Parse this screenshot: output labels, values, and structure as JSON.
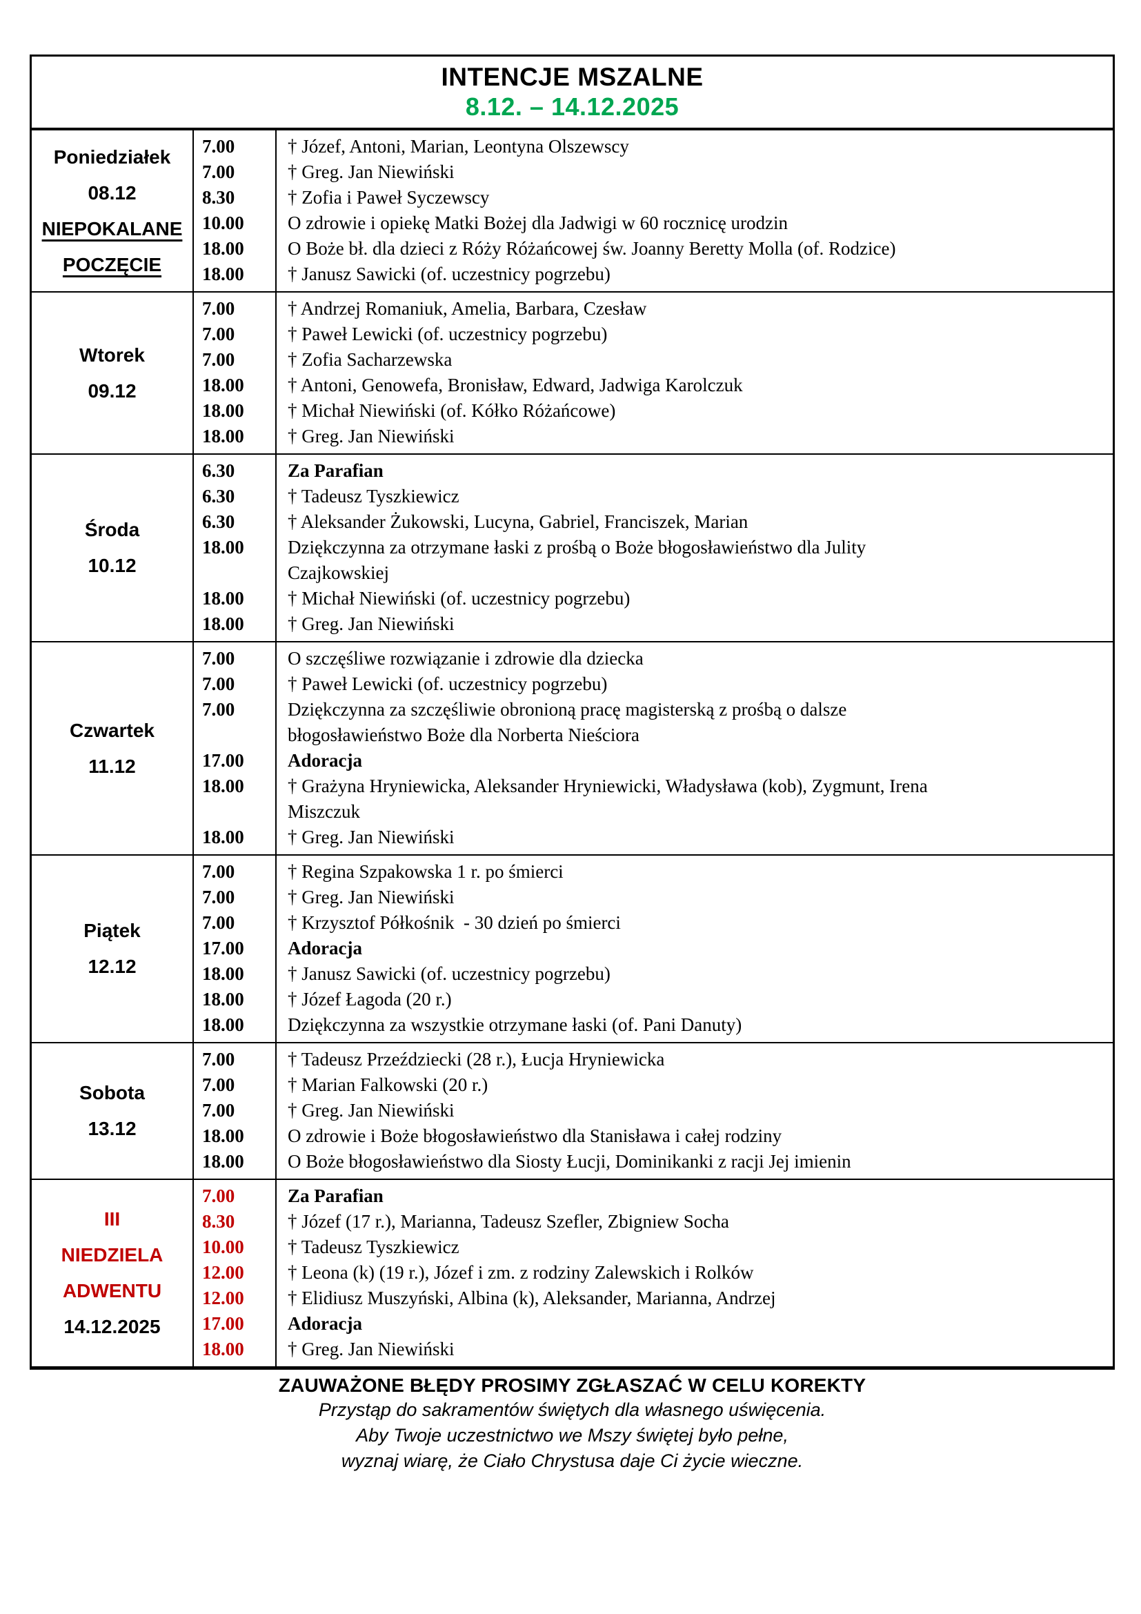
{
  "colors": {
    "green": "#00A651",
    "red": "#C00000"
  },
  "header": {
    "title": "INTENCJE MSZALNE",
    "date_range": "8.12. – 14.12.2025"
  },
  "days": [
    {
      "label_lines": [
        {
          "text": "Poniedziałek"
        },
        {
          "text": "08.12"
        },
        {
          "text": "NIEPOKALANE",
          "underline": true
        },
        {
          "text": "POCZĘCIE",
          "underline": true
        }
      ],
      "red_times": false,
      "entries": [
        {
          "time": "7.00",
          "text": "† Józef, Antoni, Marian, Leontyna Olszewscy"
        },
        {
          "time": "7.00",
          "text": "† Greg. Jan Niewiński"
        },
        {
          "time": "8.30",
          "text": "† Zofia i Paweł Syczewscy"
        },
        {
          "time": "10.00",
          "text": "O zdrowie i opiekę Matki Bożej dla Jadwigi w 60 rocznicę urodzin"
        },
        {
          "time": "18.00",
          "text": "O Boże bł. dla dzieci z Róży Różańcowej św. Joanny Beretty Molla (of. Rodzice)"
        },
        {
          "time": "18.00",
          "text": "† Janusz Sawicki (of. uczestnicy pogrzebu)"
        }
      ]
    },
    {
      "label_lines": [
        {
          "text": "Wtorek"
        },
        {
          "text": "09.12"
        }
      ],
      "red_times": false,
      "entries": [
        {
          "time": "7.00",
          "text": "† Andrzej Romaniuk, Amelia, Barbara, Czesław"
        },
        {
          "time": "7.00",
          "text": "† Paweł Lewicki (of. uczestnicy pogrzebu)"
        },
        {
          "time": "7.00",
          "text": "† Zofia Sacharzewska"
        },
        {
          "time": "18.00",
          "text": "† Antoni, Genowefa, Bronisław, Edward, Jadwiga Karolczuk"
        },
        {
          "time": "18.00",
          "text": "† Michał Niewiński (of. Kółko Różańcowe)"
        },
        {
          "time": "18.00",
          "text": "† Greg. Jan Niewiński"
        }
      ]
    },
    {
      "label_lines": [
        {
          "text": "Środa"
        },
        {
          "text": "10.12"
        }
      ],
      "red_times": false,
      "entries": [
        {
          "time": "6.30",
          "text": "Za Parafian",
          "bold": true
        },
        {
          "time": "6.30",
          "text": "† Tadeusz Tyszkiewicz"
        },
        {
          "time": "6.30",
          "text": "† Aleksander Żukowski, Lucyna, Gabriel, Franciszek, Marian"
        },
        {
          "time": "18.00",
          "text": "Dziękczynna za otrzymane łaski z prośbą o Boże błogosławieństwo dla Julity\nCzajkowskiej"
        },
        {
          "time": "18.00",
          "text": "† Michał Niewiński (of. uczestnicy pogrzebu)"
        },
        {
          "time": "18.00",
          "text": "† Greg. Jan Niewiński"
        }
      ]
    },
    {
      "label_lines": [
        {
          "text": "Czwartek"
        },
        {
          "text": "11.12"
        }
      ],
      "red_times": false,
      "entries": [
        {
          "time": "7.00",
          "text": "O szczęśliwe rozwiązanie i zdrowie dla dziecka"
        },
        {
          "time": "7.00",
          "text": "† Paweł Lewicki (of. uczestnicy pogrzebu)"
        },
        {
          "time": "7.00",
          "text": "Dziękczynna za szczęśliwie obronioną pracę magisterską z prośbą o dalsze\nbłogosławieństwo Boże dla Norberta Nieściora"
        },
        {
          "time": "17.00",
          "text": "Adoracja",
          "bold": true
        },
        {
          "time": "18.00",
          "text": "† Grażyna Hryniewicka, Aleksander Hryniewicki, Władysława (kob), Zygmunt, Irena\nMiszczuk"
        },
        {
          "time": "18.00",
          "text": "† Greg. Jan Niewiński"
        }
      ]
    },
    {
      "label_lines": [
        {
          "text": "Piątek"
        },
        {
          "text": "12.12"
        }
      ],
      "red_times": false,
      "entries": [
        {
          "time": "7.00",
          "text": "† Regina Szpakowska 1 r. po śmierci"
        },
        {
          "time": "7.00",
          "text": "† Greg. Jan Niewiński"
        },
        {
          "time": "7.00",
          "text": "† Krzysztof Półkośnik  - 30 dzień po śmierci"
        },
        {
          "time": "17.00",
          "text": "Adoracja",
          "bold": true
        },
        {
          "time": "18.00",
          "text": "† Janusz Sawicki (of. uczestnicy pogrzebu)"
        },
        {
          "time": "18.00",
          "text": "† Józef Łagoda (20 r.)"
        },
        {
          "time": "18.00",
          "text": "Dziękczynna za wszystkie otrzymane łaski (of. Pani Danuty)"
        }
      ]
    },
    {
      "label_lines": [
        {
          "text": "Sobota"
        },
        {
          "text": "13.12"
        }
      ],
      "red_times": false,
      "entries": [
        {
          "time": "7.00",
          "text": "† Tadeusz Przeździecki (28 r.), Łucja Hryniewicka"
        },
        {
          "time": "7.00",
          "text": "† Marian Falkowski (20 r.)"
        },
        {
          "time": "7.00",
          "text": "† Greg. Jan Niewiński"
        },
        {
          "time": "18.00",
          "text": "O zdrowie i Boże błogosławieństwo dla Stanisława i całej rodziny"
        },
        {
          "time": "18.00",
          "text": "O Boże błogosławieństwo dla Siosty Łucji, Dominikanki z racji Jej imienin"
        }
      ]
    },
    {
      "label_lines": [
        {
          "text": "III",
          "red": true
        },
        {
          "text": "NIEDZIELA",
          "red": true
        },
        {
          "text": "ADWENTU",
          "red": true
        },
        {
          "text": "14.12.2025"
        }
      ],
      "red_times": true,
      "entries": [
        {
          "time": "7.00",
          "text": "Za Parafian",
          "bold": true
        },
        {
          "time": "8.30",
          "text": "† Józef (17 r.), Marianna, Tadeusz Szefler, Zbigniew Socha"
        },
        {
          "time": "10.00",
          "text": "† Tadeusz Tyszkiewicz"
        },
        {
          "time": "12.00",
          "text": "† Leona (k) (19 r.), Józef i zm. z rodziny Zalewskich i Rolków"
        },
        {
          "time": "12.00",
          "text": "† Elidiusz Muszyński, Albina (k), Aleksander, Marianna, Andrzej"
        },
        {
          "time": "17.00",
          "text": "Adoracja",
          "bold": true
        },
        {
          "time": "18.00",
          "text": "† Greg. Jan Niewiński"
        }
      ]
    }
  ],
  "footer": {
    "notice": "ZAUWAŻONE BŁĘDY PROSIMY ZGŁASZAĆ W CELU KOREKTY",
    "lines": [
      "Przystąp do sakramentów świętych dla własnego uświęcenia.",
      "Aby Twoje uczestnictwo we Mszy świętej było pełne,",
      "wyznaj wiarę, że Ciało Chrystusa daje Ci życie wieczne."
    ]
  }
}
